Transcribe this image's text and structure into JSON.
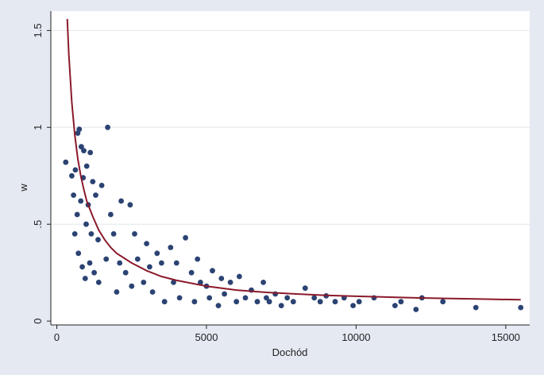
{
  "chart_data": {
    "type": "scatter",
    "title": "",
    "xlabel": "Dochód",
    "ylabel": "w",
    "xlim": [
      -200,
      15800
    ],
    "ylim": [
      -0.02,
      1.6
    ],
    "x_ticks": [
      0,
      5000,
      10000,
      15000
    ],
    "x_tick_labels": [
      "0",
      "5000",
      "10000",
      "15000"
    ],
    "y_ticks": [
      0,
      0.5,
      1,
      1.5
    ],
    "y_tick_labels": [
      "0",
      ".5",
      "1",
      "1.5"
    ],
    "grid": "horizontal",
    "legend": "none",
    "colors": {
      "background": "#e5e9f2",
      "plot_area": "#ffffff",
      "points": "#2b4372",
      "fit_line": "#8b1a2b",
      "grid": "#e3e6ec"
    },
    "series": [
      {
        "kind": "points",
        "x": [
          300,
          500,
          560,
          600,
          620,
          680,
          700,
          720,
          750,
          800,
          820,
          850,
          880,
          900,
          950,
          980,
          1000,
          1050,
          1100,
          1120,
          1150,
          1200,
          1250,
          1300,
          1380,
          1400,
          1500,
          1650,
          1700,
          1800,
          1900,
          2000,
          2100,
          2150,
          2300,
          2450,
          2500,
          2600,
          2700,
          2900,
          3000,
          3100,
          3200,
          3350,
          3500,
          3600,
          3800,
          3900,
          4000,
          4100,
          4300,
          4500,
          4600,
          4700,
          4800,
          5000,
          5100,
          5200,
          5400,
          5500,
          5600,
          5800,
          6000,
          6100,
          6300,
          6500,
          6700,
          6900,
          7000,
          7100,
          7300,
          7500,
          7700,
          7900,
          8300,
          8600,
          8800,
          9000,
          9300,
          9600,
          9900,
          10100,
          10600,
          11300,
          11500,
          12000,
          12200,
          12900,
          14000,
          15500
        ],
        "y": [
          0.82,
          0.75,
          0.65,
          0.45,
          0.78,
          0.55,
          0.97,
          0.35,
          0.99,
          0.62,
          0.9,
          0.28,
          0.74,
          0.88,
          0.22,
          0.5,
          0.8,
          0.6,
          0.3,
          0.87,
          0.45,
          0.72,
          0.25,
          0.65,
          0.42,
          0.2,
          0.7,
          0.32,
          1.0,
          0.55,
          0.45,
          0.15,
          0.3,
          0.62,
          0.25,
          0.6,
          0.18,
          0.45,
          0.32,
          0.2,
          0.4,
          0.28,
          0.15,
          0.35,
          0.3,
          0.1,
          0.38,
          0.2,
          0.3,
          0.12,
          0.43,
          0.25,
          0.1,
          0.32,
          0.2,
          0.18,
          0.12,
          0.26,
          0.08,
          0.22,
          0.14,
          0.2,
          0.1,
          0.23,
          0.12,
          0.16,
          0.1,
          0.2,
          0.12,
          0.1,
          0.14,
          0.08,
          0.12,
          0.1,
          0.17,
          0.12,
          0.1,
          0.13,
          0.1,
          0.12,
          0.08,
          0.1,
          0.12,
          0.08,
          0.1,
          0.06,
          0.12,
          0.1,
          0.07,
          0.07
        ]
      },
      {
        "kind": "line",
        "x": [
          350,
          400,
          500,
          600,
          700,
          800,
          900,
          1000,
          1200,
          1400,
          1600,
          1800,
          2000,
          2500,
          3000,
          3500,
          4000,
          5000,
          6000,
          7000,
          8000,
          9000,
          10000,
          11000,
          12000,
          13000,
          14000,
          15500
        ],
        "y": [
          1.56,
          1.38,
          1.13,
          0.96,
          0.84,
          0.75,
          0.68,
          0.62,
          0.54,
          0.47,
          0.42,
          0.38,
          0.35,
          0.3,
          0.26,
          0.23,
          0.21,
          0.18,
          0.16,
          0.148,
          0.14,
          0.133,
          0.128,
          0.124,
          0.12,
          0.117,
          0.114,
          0.11
        ]
      }
    ]
  }
}
